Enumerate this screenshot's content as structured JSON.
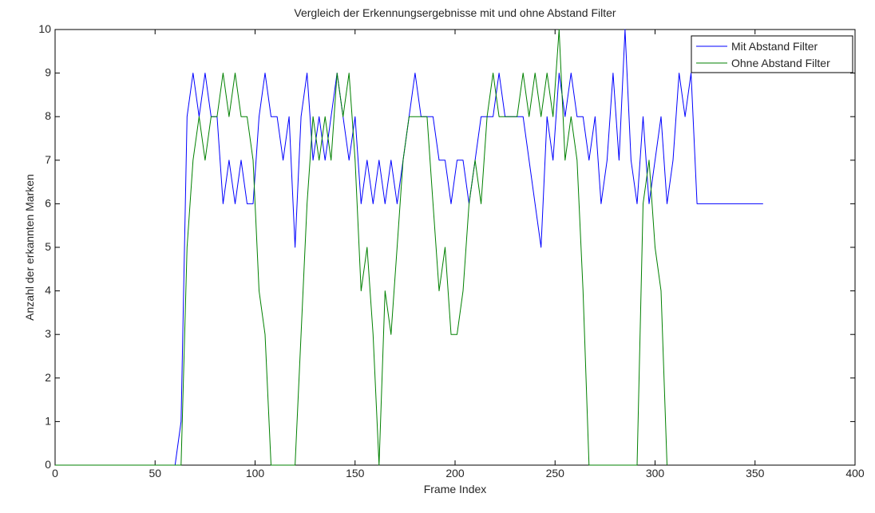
{
  "chart_data": {
    "type": "line",
    "title": "Vergleich der Erkennungsergebnisse mit und ohne Abstand Filter",
    "x_label": "Frame Index",
    "y_label": "Anzahl der erkannten Marken",
    "x": [
      0,
      60,
      63,
      66,
      69,
      72,
      75,
      78,
      81,
      84,
      87,
      90,
      93,
      96,
      99,
      102,
      105,
      108,
      111,
      114,
      117,
      120,
      123,
      126,
      129,
      132,
      135,
      138,
      141,
      144,
      147,
      150,
      153,
      156,
      159,
      162,
      165,
      168,
      171,
      174,
      177,
      180,
      183,
      186,
      189,
      192,
      195,
      198,
      201,
      204,
      207,
      210,
      213,
      216,
      219,
      222,
      225,
      228,
      231,
      234,
      237,
      240,
      243,
      246,
      249,
      252,
      255,
      258,
      261,
      264,
      267,
      270,
      273,
      276,
      279,
      282,
      285,
      288,
      291,
      294,
      297,
      300,
      303,
      306,
      309,
      312,
      315,
      318,
      321,
      324,
      327,
      330,
      333,
      336,
      339,
      342,
      345,
      348,
      351,
      354
    ],
    "series": [
      {
        "name": "Mit Abstand Filter",
        "color": "#0000ff",
        "values": [
          0,
          0,
          1,
          8,
          9,
          8,
          9,
          8,
          8,
          6,
          7,
          6,
          7,
          6,
          6,
          8,
          9,
          8,
          8,
          7,
          8,
          5,
          8,
          9,
          7,
          8,
          7,
          8,
          9,
          8,
          7,
          8,
          6,
          7,
          6,
          7,
          6,
          7,
          6,
          7,
          8,
          9,
          8,
          8,
          8,
          7,
          7,
          6,
          7,
          7,
          6,
          7,
          8,
          8,
          8,
          9,
          8,
          8,
          8,
          8,
          7,
          6,
          5,
          8,
          7,
          9,
          8,
          9,
          8,
          8,
          7,
          8,
          6,
          7,
          9,
          7,
          10,
          7,
          6,
          8,
          6,
          7,
          8,
          6,
          7,
          9,
          8,
          9,
          6,
          6,
          6,
          6,
          6,
          6,
          6,
          6,
          6,
          6,
          6,
          6
        ]
      },
      {
        "name": "Ohne Abstand Filter",
        "color": "#008000",
        "values": [
          0,
          0,
          0,
          5,
          7,
          8,
          7,
          8,
          8,
          9,
          8,
          9,
          8,
          8,
          7,
          4,
          3,
          0,
          0,
          0,
          0,
          0,
          3,
          6,
          8,
          7,
          8,
          7,
          9,
          8,
          9,
          7,
          4,
          5,
          3,
          0,
          4,
          3,
          5,
          7,
          8,
          8,
          8,
          8,
          6,
          4,
          5,
          3,
          3,
          4,
          6,
          7,
          6,
          8,
          9,
          8,
          8,
          8,
          8,
          9,
          8,
          9,
          8,
          9,
          8,
          10,
          7,
          8,
          7,
          4,
          0,
          0,
          0,
          0,
          0,
          0,
          0,
          0,
          0,
          6,
          7,
          5,
          4,
          0,
          null,
          null,
          null,
          null,
          null,
          null,
          null,
          null,
          null,
          null,
          null,
          null,
          null,
          null,
          null,
          null
        ]
      }
    ],
    "xlim": [
      0,
      400
    ],
    "xticks": [
      0,
      50,
      100,
      150,
      200,
      250,
      300,
      350,
      400
    ],
    "ylim": [
      0,
      10
    ],
    "yticks": [
      0,
      1,
      2,
      3,
      4,
      5,
      6,
      7,
      8,
      9,
      10
    ],
    "legend": "top-right"
  }
}
